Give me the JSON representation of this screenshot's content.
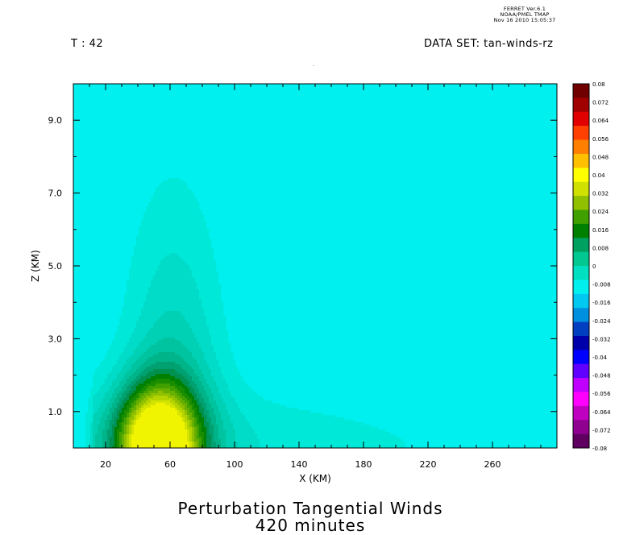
{
  "header": {
    "ferret_line1": "FERRET  Ver.6.1",
    "ferret_line2": "NOAA/PMEL TMAP",
    "ferret_line3": "Nov 16 2010 15:05:37",
    "time_label": "T : 42",
    "dataset_label": "DATA SET: tan-winds-rz"
  },
  "title": {
    "line1": "Perturbation Tangential Winds",
    "line2": "420 minutes"
  },
  "chart_data": {
    "type": "heatmap",
    "xlabel": "X (KM)",
    "ylabel": "Z (KM)",
    "xlim": [
      0,
      300
    ],
    "ylim": [
      0,
      10
    ],
    "x_ticks": [
      20,
      60,
      100,
      140,
      180,
      220,
      260
    ],
    "y_ticks": [
      1.0,
      3.0,
      5.0,
      7.0,
      9.0
    ],
    "x_tick_labels": [
      "20",
      "60",
      "100",
      "140",
      "180",
      "220",
      "260"
    ],
    "y_tick_labels": [
      "1.0",
      "3.0",
      "5.0",
      "7.0",
      "9.0"
    ],
    "colorbar": {
      "levels": [
        -0.08,
        -0.072,
        -0.064,
        -0.056,
        -0.048,
        -0.04,
        -0.032,
        -0.024,
        -0.016,
        -0.008,
        0,
        0.008,
        0.016,
        0.024,
        0.032,
        0.04,
        0.048,
        0.056,
        0.064,
        0.072,
        0.08
      ],
      "labels": [
        "-0.08",
        "-0.072",
        "-0.064",
        "-0.056",
        "-0.048",
        "-0.04",
        "-0.032",
        "-0.024",
        "-0.016",
        "-0.008",
        "0",
        "0.008",
        "0.016",
        "0.024",
        "0.032",
        "0.04",
        "0.048",
        "0.056",
        "0.064",
        "0.072",
        "0.08"
      ],
      "colors": [
        "#600060",
        "#900090",
        "#c000c0",
        "#ff00ff",
        "#c000ff",
        "#6000ff",
        "#0000ff",
        "#0000aa",
        "#0040c0",
        "#0090e0",
        "#00c8f0",
        "#00f0f0",
        "#00e0c0",
        "#00c890",
        "#00a060",
        "#008000",
        "#40a000",
        "#90c000",
        "#d0e000",
        "#ffff00",
        "#ffc000",
        "#ff8000",
        "#ff4000",
        "#e00000",
        "#a00000",
        "#700000"
      ]
    },
    "field_description": "Positive perturbation tangential wind maximum near surface around X≈50 km; contours range from 0 to ~0.04",
    "contour_levels_shown": [
      0.002,
      0.004,
      0.006,
      0.008,
      0.01,
      0.012,
      0.014,
      0.016,
      0.018,
      0.02,
      0.022,
      0.024,
      0.026,
      0.028,
      0.03,
      0.032,
      0.034,
      0.036,
      0.038,
      0.04
    ]
  }
}
